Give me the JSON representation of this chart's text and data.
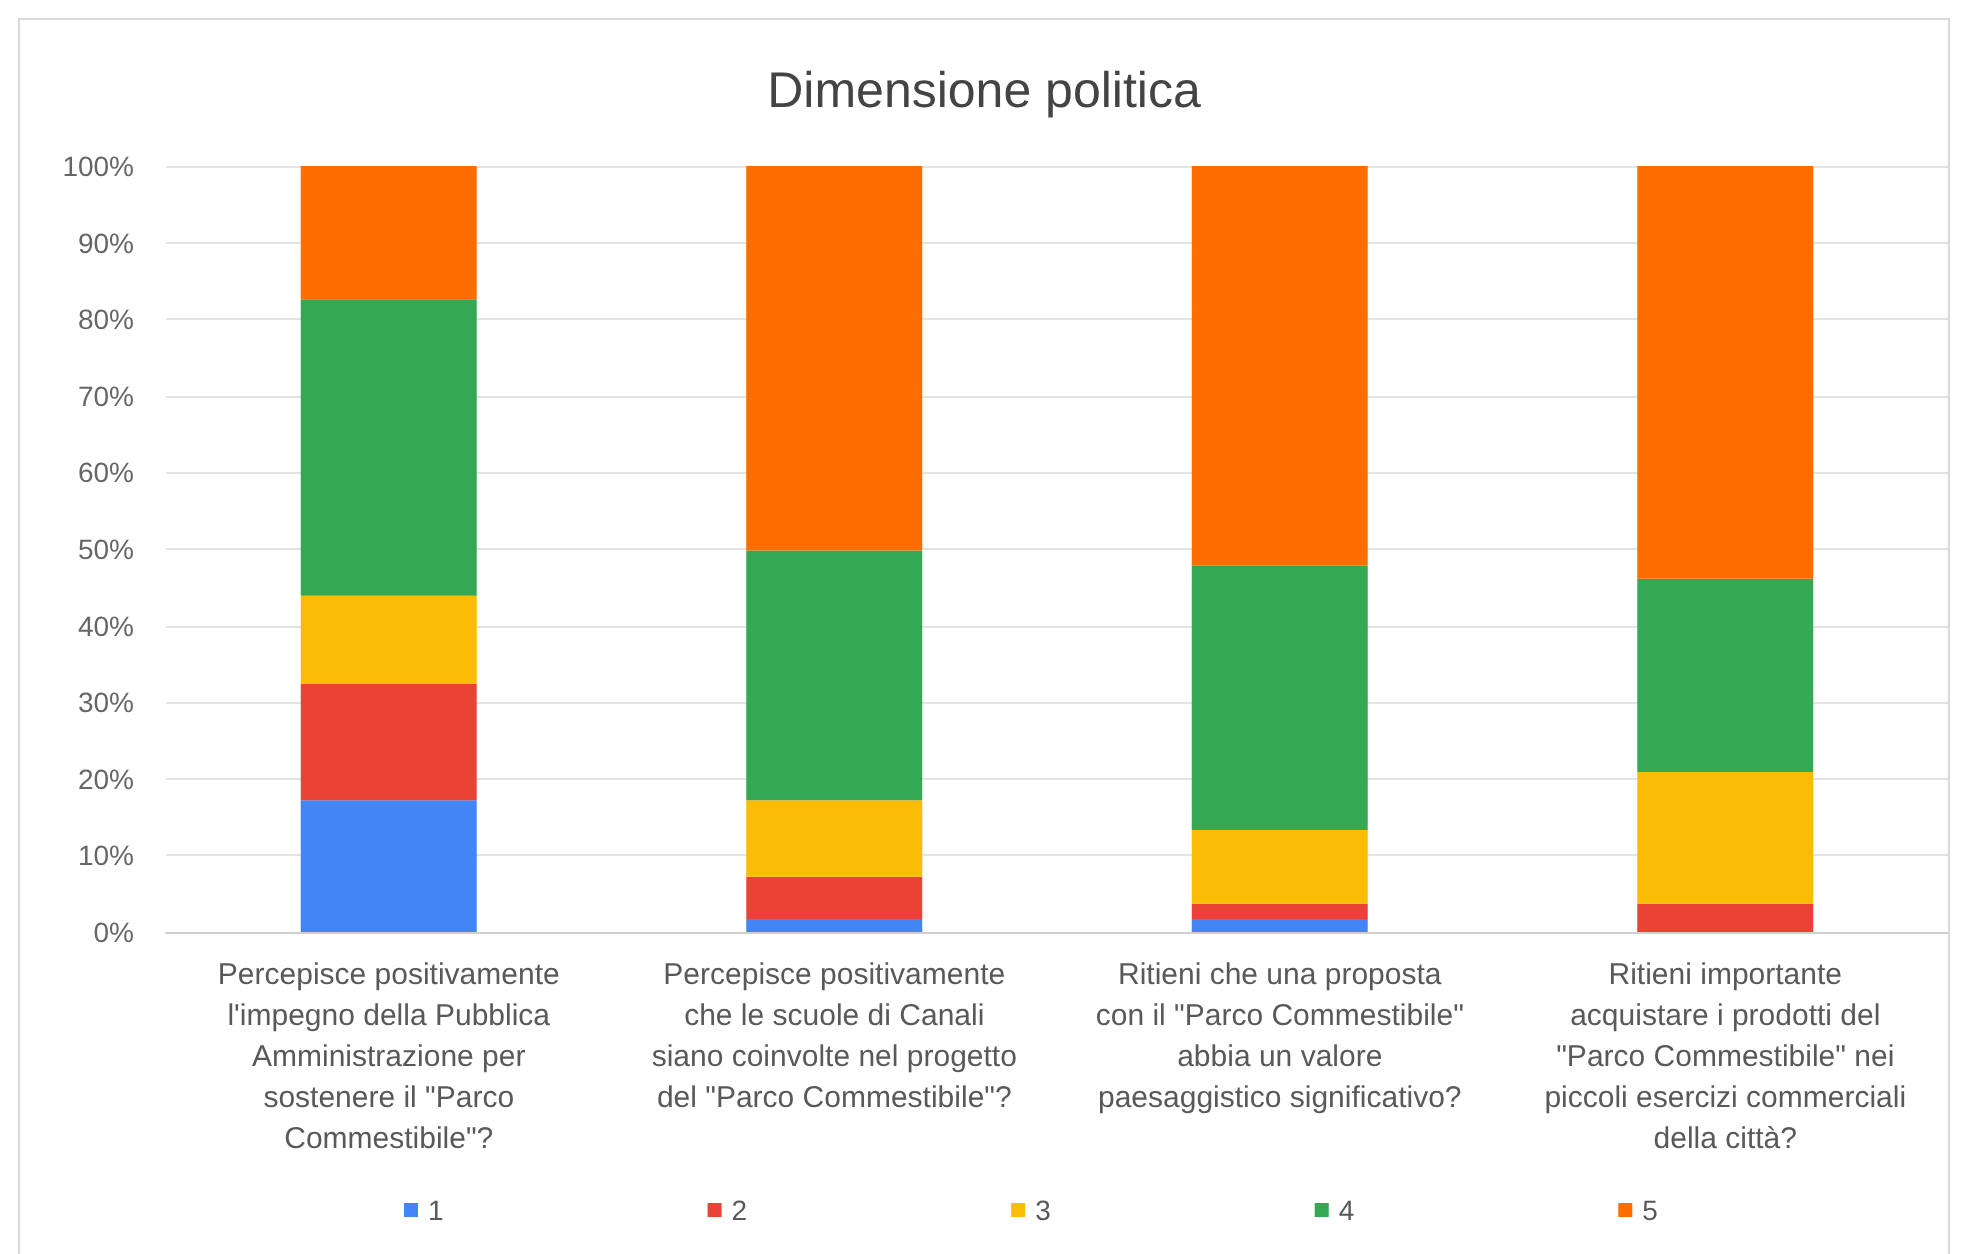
{
  "chart_data": {
    "type": "bar",
    "stacked": true,
    "title": "Dimensione politica",
    "categories": [
      "Percepisce positivamente\nl'impegno della Pubblica\nAmministrazione per\nsostenere il \"Parco\nCommestibile\"?",
      "Percepisce positivamente\nche le scuole di Canali\nsiano coinvolte nel progetto\ndel \"Parco Commestibile\"?",
      "Ritieni che una proposta\ncon il \"Parco Commestibile\"\nabbia un valore\npaesaggistico significativo?",
      "Ritieni importante\nacquistare i prodotti del\n\"Parco Commestibile\" nei\npiccoli esercizi commerciali\ndella città?"
    ],
    "series": [
      {
        "name": "1",
        "color": "#4285f4",
        "values": [
          17.2,
          1.7,
          1.7,
          0
        ]
      },
      {
        "name": "2",
        "color": "#ea4335",
        "values": [
          15.2,
          5.5,
          2.0,
          3.7
        ]
      },
      {
        "name": "3",
        "color": "#fbbc04",
        "values": [
          11.5,
          10.0,
          9.6,
          17.2
        ]
      },
      {
        "name": "4",
        "color": "#34a853",
        "values": [
          38.7,
          32.6,
          34.5,
          25.2
        ]
      },
      {
        "name": "5",
        "color": "#ff6d01",
        "values": [
          17.4,
          50.2,
          52.2,
          53.9
        ]
      }
    ],
    "ylim": [
      0,
      100
    ],
    "yticks": [
      {
        "value": 0,
        "label": "0%"
      },
      {
        "value": 10,
        "label": "10%"
      },
      {
        "value": 20,
        "label": "20%"
      },
      {
        "value": 30,
        "label": "30%"
      },
      {
        "value": 40,
        "label": "40%"
      },
      {
        "value": 50,
        "label": "50%"
      },
      {
        "value": 60,
        "label": "60%"
      },
      {
        "value": 70,
        "label": "70%"
      },
      {
        "value": 80,
        "label": "80%"
      },
      {
        "value": 90,
        "label": "90%"
      },
      {
        "value": 100,
        "label": "100%"
      }
    ],
    "grid": "y",
    "legend": "bottom"
  }
}
